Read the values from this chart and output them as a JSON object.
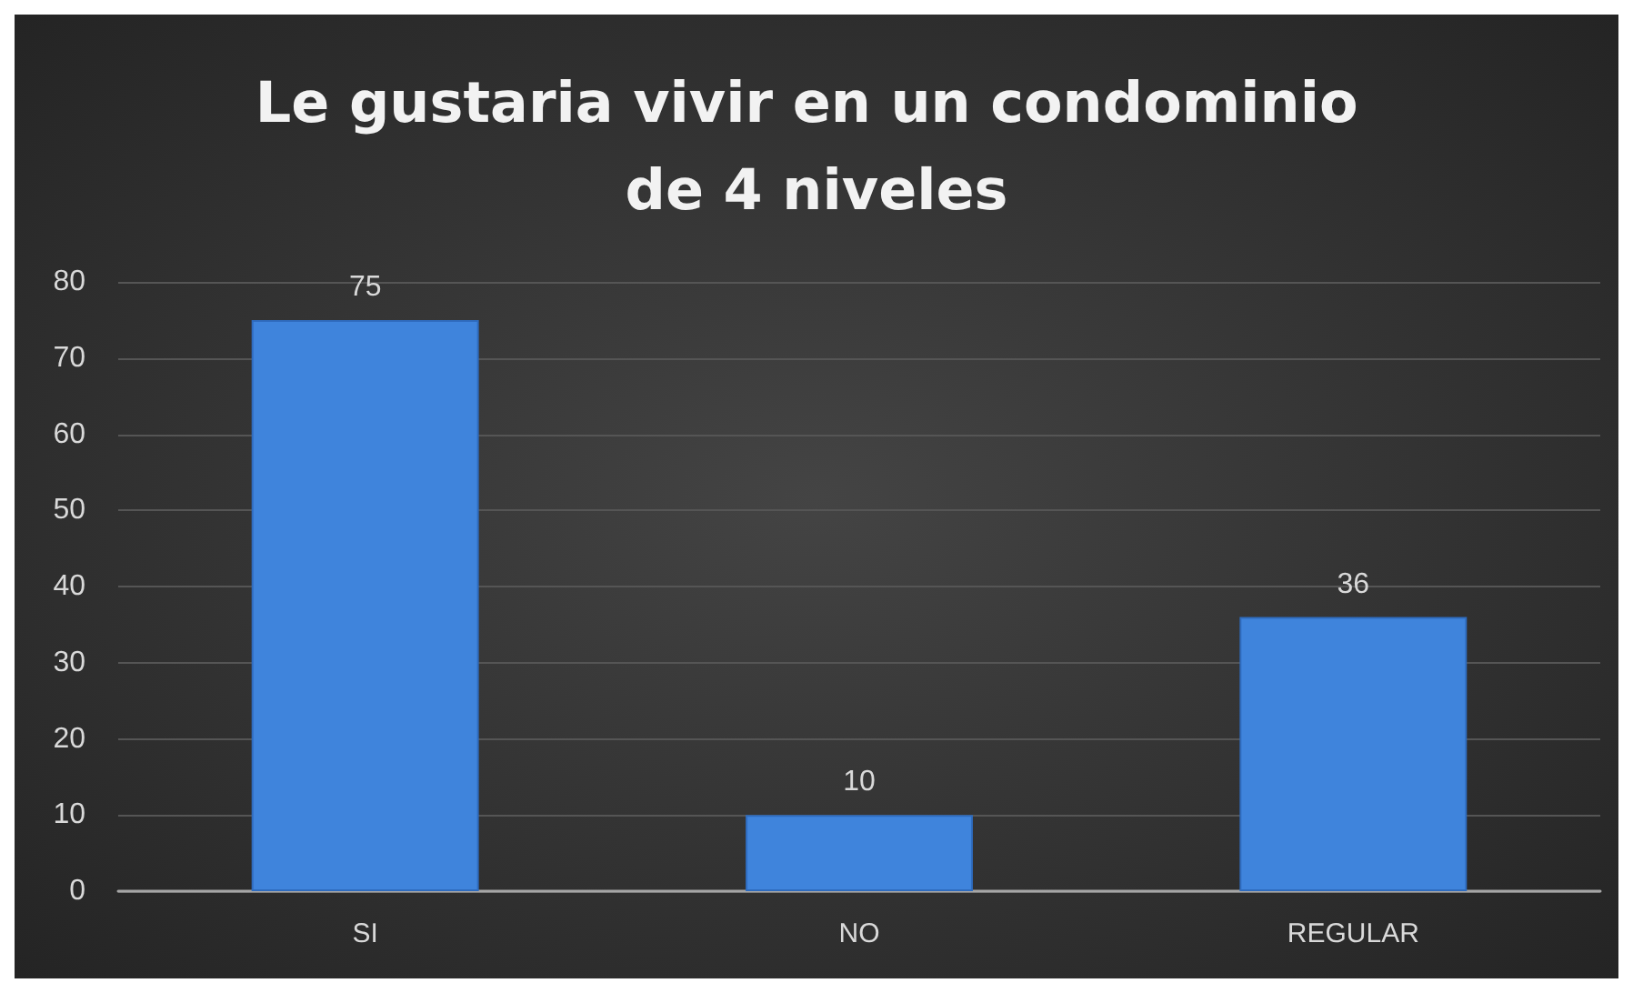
{
  "chart_data": {
    "type": "bar",
    "title": "Le gustaria vivir en un condominio de 4 niveles",
    "categories": [
      "SI",
      "NO",
      "REGULAR"
    ],
    "values": [
      75,
      10,
      36
    ],
    "color": "#3f84dc",
    "ylim": [
      0,
      80
    ],
    "yticks": [
      0,
      10,
      20,
      30,
      40,
      50,
      60,
      70,
      80
    ],
    "grid": "y",
    "data_labels": true
  }
}
